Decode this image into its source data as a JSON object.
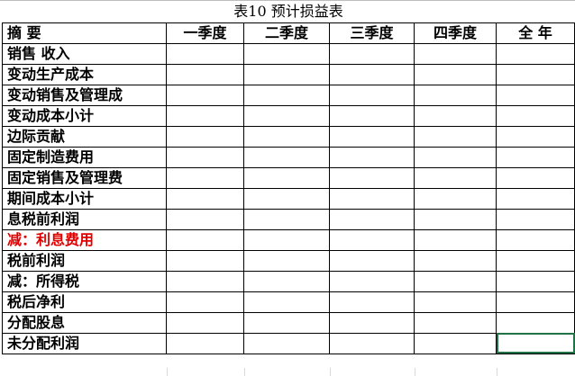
{
  "title": "表10  预计损益表",
  "headers": [
    "摘  要",
    "一季度",
    "二季度",
    "三季度",
    "四季度",
    "全  年"
  ],
  "rows": [
    {
      "label": "销售  收入"
    },
    {
      "label": "变动生产成本"
    },
    {
      "label": "变动销售及管理成"
    },
    {
      "label": "变动成本小计"
    },
    {
      "label": "边际贡献"
    },
    {
      "label": "固定制造费用"
    },
    {
      "label": "固定销售及管理费"
    },
    {
      "label": "期间成本小计"
    },
    {
      "label": "息税前利润"
    },
    {
      "label": "减：利息费用",
      "color": "#e00000"
    },
    {
      "label": "税前利润"
    },
    {
      "label": "减：所得税"
    },
    {
      "label": "税后净利"
    },
    {
      "label": "分配股息"
    },
    {
      "label": "未分配利润"
    }
  ],
  "selection_color": "#217346"
}
